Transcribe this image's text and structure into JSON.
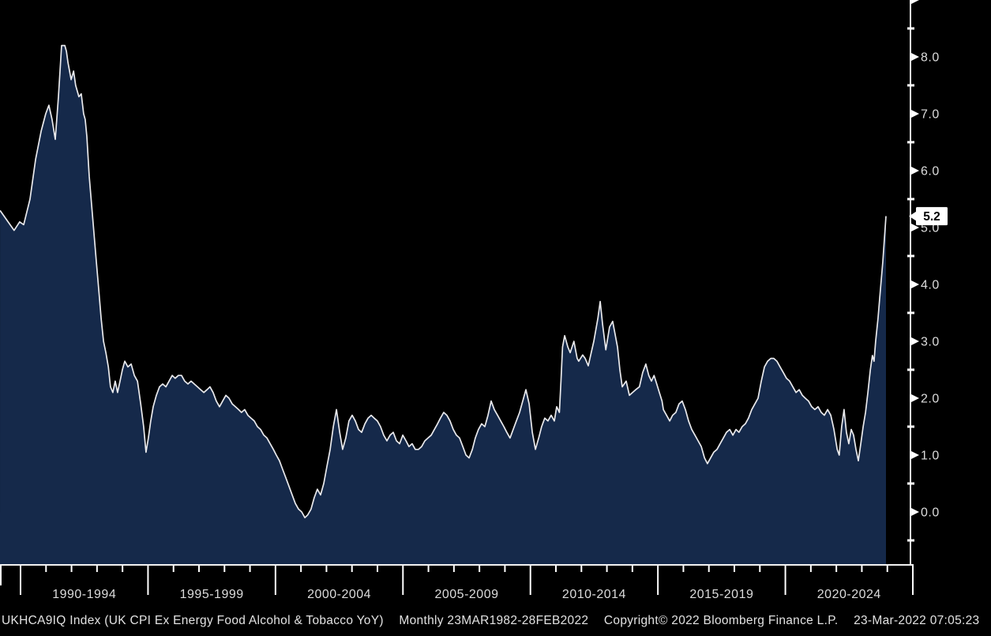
{
  "colors": {
    "background": "#000000",
    "area_fill": "#15294a",
    "line": "#e9e9ec",
    "axis": "#f2f2f2",
    "tick": "#ffffff",
    "label": "#dcdcdc",
    "tag_bg": "#ffffff",
    "tag_text": "#000000"
  },
  "status_bar": {
    "ticker_line": "UKHCA9IQ Index (UK CPI Ex Energy Food Alcohol & Tobacco YoY)",
    "periodicity_range": "Monthly 23MAR1982-28FEB2022",
    "copyright": "Copyright© 2022 Bloomberg Finance L.P.",
    "timestamp": "23-Mar-2022 07:05:23"
  },
  "chart_data": {
    "type": "area",
    "title": "UK CPI Ex Energy Food Alcohol & Tobacco YoY",
    "ticker": "UKHCA9IQ Index",
    "periodicity": "Monthly",
    "data_range": "23MAR1982-28FEB2022",
    "last_value": 5.2,
    "grid": false,
    "legend": "none",
    "x_axis": {
      "unit": "year (approx, visible window)",
      "visible_range": [
        1989.05,
        2023.4
      ],
      "period_labels": [
        "1990-1994",
        "1995-1999",
        "2000-2004",
        "2005-2009",
        "2010-2014",
        "2015-2019",
        "2020-2024"
      ]
    },
    "y_axis": {
      "tick_values": [
        0.0,
        1.0,
        2.0,
        3.0,
        4.0,
        5.0,
        6.0,
        7.0,
        8.0
      ],
      "minor_step": 0.5,
      "visible_range": [
        -0.93,
        9.0
      ],
      "tick_format": "0.0"
    },
    "series": [
      {
        "name": "UKHCA9IQ Index (UK CPI Ex Energy Food Alcohol & Tobacco YoY)",
        "points": [
          [
            1989.05,
            5.3
          ],
          [
            1989.35,
            5.1
          ],
          [
            1989.58,
            4.95
          ],
          [
            1989.79,
            5.1
          ],
          [
            1989.94,
            5.05
          ],
          [
            1990.18,
            5.5
          ],
          [
            1990.39,
            6.2
          ],
          [
            1990.6,
            6.7
          ],
          [
            1990.77,
            7.0
          ],
          [
            1990.89,
            7.15
          ],
          [
            1991.01,
            6.9
          ],
          [
            1991.13,
            6.55
          ],
          [
            1991.25,
            7.3
          ],
          [
            1991.37,
            8.2
          ],
          [
            1991.49,
            8.2
          ],
          [
            1991.55,
            8.1
          ],
          [
            1991.61,
            7.9
          ],
          [
            1991.73,
            7.6
          ],
          [
            1991.82,
            7.75
          ],
          [
            1991.9,
            7.5
          ],
          [
            1992.02,
            7.3
          ],
          [
            1992.11,
            7.35
          ],
          [
            1992.2,
            7.0
          ],
          [
            1992.26,
            6.9
          ],
          [
            1992.32,
            6.6
          ],
          [
            1992.41,
            5.9
          ],
          [
            1992.5,
            5.4
          ],
          [
            1992.59,
            4.9
          ],
          [
            1992.68,
            4.4
          ],
          [
            1992.77,
            3.9
          ],
          [
            1992.86,
            3.4
          ],
          [
            1992.95,
            3.0
          ],
          [
            1993.04,
            2.8
          ],
          [
            1993.13,
            2.55
          ],
          [
            1993.21,
            2.2
          ],
          [
            1993.3,
            2.1
          ],
          [
            1993.39,
            2.3
          ],
          [
            1993.48,
            2.1
          ],
          [
            1993.57,
            2.3
          ],
          [
            1993.66,
            2.5
          ],
          [
            1993.75,
            2.65
          ],
          [
            1993.87,
            2.55
          ],
          [
            1993.99,
            2.6
          ],
          [
            1994.11,
            2.4
          ],
          [
            1994.23,
            2.3
          ],
          [
            1994.35,
            1.9
          ],
          [
            1994.46,
            1.5
          ],
          [
            1994.55,
            1.05
          ],
          [
            1994.64,
            1.3
          ],
          [
            1994.73,
            1.6
          ],
          [
            1994.82,
            1.85
          ],
          [
            1994.94,
            2.05
          ],
          [
            1995.06,
            2.2
          ],
          [
            1995.18,
            2.25
          ],
          [
            1995.3,
            2.2
          ],
          [
            1995.42,
            2.3
          ],
          [
            1995.54,
            2.4
          ],
          [
            1995.65,
            2.35
          ],
          [
            1995.77,
            2.4
          ],
          [
            1995.89,
            2.4
          ],
          [
            1996.01,
            2.3
          ],
          [
            1996.13,
            2.25
          ],
          [
            1996.25,
            2.3
          ],
          [
            1996.37,
            2.25
          ],
          [
            1996.49,
            2.2
          ],
          [
            1996.61,
            2.15
          ],
          [
            1996.73,
            2.1
          ],
          [
            1996.85,
            2.15
          ],
          [
            1996.96,
            2.2
          ],
          [
            1997.08,
            2.1
          ],
          [
            1997.2,
            1.95
          ],
          [
            1997.32,
            1.85
          ],
          [
            1997.44,
            1.95
          ],
          [
            1997.56,
            2.05
          ],
          [
            1997.68,
            2.0
          ],
          [
            1997.8,
            1.9
          ],
          [
            1997.92,
            1.85
          ],
          [
            1998.04,
            1.8
          ],
          [
            1998.15,
            1.75
          ],
          [
            1998.27,
            1.8
          ],
          [
            1998.39,
            1.7
          ],
          [
            1998.51,
            1.65
          ],
          [
            1998.63,
            1.6
          ],
          [
            1998.75,
            1.5
          ],
          [
            1998.87,
            1.45
          ],
          [
            1998.99,
            1.35
          ],
          [
            1999.11,
            1.3
          ],
          [
            1999.23,
            1.2
          ],
          [
            1999.35,
            1.1
          ],
          [
            1999.46,
            1.0
          ],
          [
            1999.58,
            0.9
          ],
          [
            1999.7,
            0.75
          ],
          [
            1999.82,
            0.6
          ],
          [
            1999.94,
            0.45
          ],
          [
            2000.06,
            0.3
          ],
          [
            2000.18,
            0.15
          ],
          [
            2000.3,
            0.05
          ],
          [
            2000.42,
            0.0
          ],
          [
            2000.54,
            -0.1
          ],
          [
            2000.65,
            -0.05
          ],
          [
            2000.77,
            0.05
          ],
          [
            2000.89,
            0.25
          ],
          [
            2001.01,
            0.4
          ],
          [
            2001.13,
            0.3
          ],
          [
            2001.25,
            0.5
          ],
          [
            2001.37,
            0.8
          ],
          [
            2001.49,
            1.1
          ],
          [
            2001.61,
            1.5
          ],
          [
            2001.73,
            1.8
          ],
          [
            2001.85,
            1.4
          ],
          [
            2001.96,
            1.1
          ],
          [
            2002.08,
            1.3
          ],
          [
            2002.2,
            1.6
          ],
          [
            2002.32,
            1.7
          ],
          [
            2002.44,
            1.6
          ],
          [
            2002.56,
            1.45
          ],
          [
            2002.68,
            1.4
          ],
          [
            2002.8,
            1.55
          ],
          [
            2002.92,
            1.65
          ],
          [
            2003.04,
            1.7
          ],
          [
            2003.15,
            1.65
          ],
          [
            2003.27,
            1.6
          ],
          [
            2003.39,
            1.5
          ],
          [
            2003.51,
            1.35
          ],
          [
            2003.63,
            1.25
          ],
          [
            2003.75,
            1.35
          ],
          [
            2003.87,
            1.4
          ],
          [
            2003.99,
            1.25
          ],
          [
            2004.11,
            1.2
          ],
          [
            2004.23,
            1.35
          ],
          [
            2004.35,
            1.25
          ],
          [
            2004.46,
            1.15
          ],
          [
            2004.58,
            1.2
          ],
          [
            2004.7,
            1.1
          ],
          [
            2004.82,
            1.1
          ],
          [
            2004.94,
            1.15
          ],
          [
            2005.06,
            1.25
          ],
          [
            2005.18,
            1.3
          ],
          [
            2005.3,
            1.35
          ],
          [
            2005.42,
            1.45
          ],
          [
            2005.54,
            1.55
          ],
          [
            2005.65,
            1.65
          ],
          [
            2005.77,
            1.75
          ],
          [
            2005.89,
            1.7
          ],
          [
            2006.01,
            1.6
          ],
          [
            2006.13,
            1.45
          ],
          [
            2006.25,
            1.35
          ],
          [
            2006.37,
            1.3
          ],
          [
            2006.49,
            1.15
          ],
          [
            2006.61,
            1.0
          ],
          [
            2006.73,
            0.95
          ],
          [
            2006.85,
            1.1
          ],
          [
            2006.96,
            1.3
          ],
          [
            2007.08,
            1.45
          ],
          [
            2007.2,
            1.55
          ],
          [
            2007.32,
            1.5
          ],
          [
            2007.44,
            1.7
          ],
          [
            2007.56,
            1.95
          ],
          [
            2007.68,
            1.8
          ],
          [
            2007.8,
            1.7
          ],
          [
            2007.92,
            1.6
          ],
          [
            2008.04,
            1.5
          ],
          [
            2008.15,
            1.4
          ],
          [
            2008.27,
            1.3
          ],
          [
            2008.39,
            1.45
          ],
          [
            2008.51,
            1.6
          ],
          [
            2008.63,
            1.75
          ],
          [
            2008.75,
            1.95
          ],
          [
            2008.87,
            2.15
          ],
          [
            2008.99,
            1.9
          ],
          [
            2009.11,
            1.4
          ],
          [
            2009.23,
            1.1
          ],
          [
            2009.35,
            1.3
          ],
          [
            2009.46,
            1.5
          ],
          [
            2009.58,
            1.65
          ],
          [
            2009.7,
            1.6
          ],
          [
            2009.82,
            1.7
          ],
          [
            2009.94,
            1.6
          ],
          [
            2010.03,
            1.85
          ],
          [
            2010.13,
            1.75
          ],
          [
            2010.19,
            2.3
          ],
          [
            2010.25,
            2.9
          ],
          [
            2010.33,
            3.1
          ],
          [
            2010.45,
            2.9
          ],
          [
            2010.54,
            2.8
          ],
          [
            2010.68,
            3.0
          ],
          [
            2010.8,
            2.7
          ],
          [
            2010.86,
            2.65
          ],
          [
            2011.01,
            2.76
          ],
          [
            2011.1,
            2.7
          ],
          [
            2011.22,
            2.57
          ],
          [
            2011.33,
            2.8
          ],
          [
            2011.43,
            3.0
          ],
          [
            2011.58,
            3.4
          ],
          [
            2011.67,
            3.7
          ],
          [
            2011.76,
            3.3
          ],
          [
            2011.88,
            2.85
          ],
          [
            2012.02,
            3.25
          ],
          [
            2012.14,
            3.35
          ],
          [
            2012.32,
            2.9
          ],
          [
            2012.41,
            2.5
          ],
          [
            2012.5,
            2.2
          ],
          [
            2012.65,
            2.3
          ],
          [
            2012.77,
            2.05
          ],
          [
            2012.89,
            2.1
          ],
          [
            2013.01,
            2.15
          ],
          [
            2013.15,
            2.2
          ],
          [
            2013.27,
            2.45
          ],
          [
            2013.39,
            2.6
          ],
          [
            2013.5,
            2.4
          ],
          [
            2013.6,
            2.3
          ],
          [
            2013.7,
            2.4
          ],
          [
            2013.8,
            2.25
          ],
          [
            2013.9,
            2.1
          ],
          [
            2014.0,
            1.95
          ],
          [
            2014.05,
            1.8
          ],
          [
            2014.17,
            1.7
          ],
          [
            2014.29,
            1.6
          ],
          [
            2014.4,
            1.7
          ],
          [
            2014.52,
            1.75
          ],
          [
            2014.64,
            1.9
          ],
          [
            2014.76,
            1.95
          ],
          [
            2014.88,
            1.8
          ],
          [
            2015.0,
            1.6
          ],
          [
            2015.12,
            1.45
          ],
          [
            2015.24,
            1.35
          ],
          [
            2015.36,
            1.25
          ],
          [
            2015.48,
            1.15
          ],
          [
            2015.6,
            0.95
          ],
          [
            2015.71,
            0.85
          ],
          [
            2015.83,
            0.95
          ],
          [
            2015.95,
            1.05
          ],
          [
            2016.07,
            1.1
          ],
          [
            2016.19,
            1.2
          ],
          [
            2016.31,
            1.3
          ],
          [
            2016.43,
            1.4
          ],
          [
            2016.55,
            1.45
          ],
          [
            2016.67,
            1.35
          ],
          [
            2016.79,
            1.45
          ],
          [
            2016.9,
            1.4
          ],
          [
            2017.02,
            1.5
          ],
          [
            2017.14,
            1.55
          ],
          [
            2017.26,
            1.65
          ],
          [
            2017.38,
            1.8
          ],
          [
            2017.5,
            1.9
          ],
          [
            2017.62,
            2.0
          ],
          [
            2017.74,
            2.3
          ],
          [
            2017.86,
            2.55
          ],
          [
            2017.98,
            2.65
          ],
          [
            2018.1,
            2.7
          ],
          [
            2018.21,
            2.7
          ],
          [
            2018.33,
            2.65
          ],
          [
            2018.45,
            2.55
          ],
          [
            2018.57,
            2.45
          ],
          [
            2018.69,
            2.35
          ],
          [
            2018.81,
            2.3
          ],
          [
            2018.93,
            2.2
          ],
          [
            2019.05,
            2.1
          ],
          [
            2019.17,
            2.15
          ],
          [
            2019.29,
            2.05
          ],
          [
            2019.4,
            2.0
          ],
          [
            2019.52,
            1.95
          ],
          [
            2019.64,
            1.85
          ],
          [
            2019.76,
            1.8
          ],
          [
            2019.88,
            1.85
          ],
          [
            2020.0,
            1.75
          ],
          [
            2020.12,
            1.7
          ],
          [
            2020.24,
            1.8
          ],
          [
            2020.36,
            1.7
          ],
          [
            2020.48,
            1.45
          ],
          [
            2020.6,
            1.1
          ],
          [
            2020.68,
            1.0
          ],
          [
            2020.77,
            1.5
          ],
          [
            2020.86,
            1.8
          ],
          [
            2020.95,
            1.4
          ],
          [
            2021.04,
            1.2
          ],
          [
            2021.13,
            1.45
          ],
          [
            2021.22,
            1.35
          ],
          [
            2021.31,
            1.1
          ],
          [
            2021.4,
            0.9
          ],
          [
            2021.49,
            1.2
          ],
          [
            2021.58,
            1.5
          ],
          [
            2021.67,
            1.75
          ],
          [
            2021.76,
            2.1
          ],
          [
            2021.85,
            2.5
          ],
          [
            2021.93,
            2.75
          ],
          [
            2021.99,
            2.65
          ],
          [
            2022.05,
            3.0
          ],
          [
            2022.14,
            3.4
          ],
          [
            2022.23,
            3.9
          ],
          [
            2022.32,
            4.4
          ],
          [
            2022.38,
            4.8
          ],
          [
            2022.44,
            5.2
          ]
        ]
      }
    ]
  }
}
